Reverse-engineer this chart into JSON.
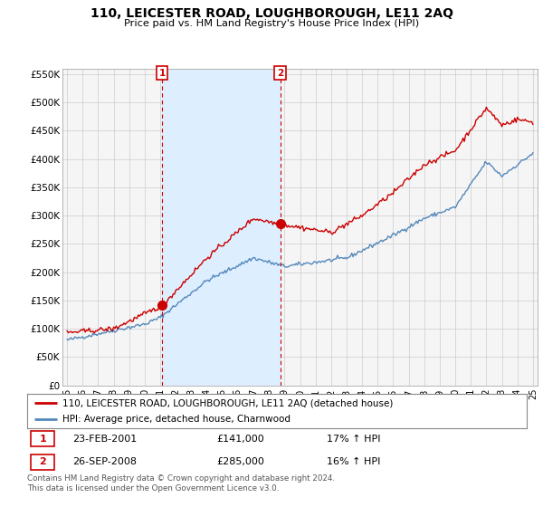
{
  "title": "110, LEICESTER ROAD, LOUGHBOROUGH, LE11 2AQ",
  "subtitle": "Price paid vs. HM Land Registry's House Price Index (HPI)",
  "ytick_vals": [
    0,
    50000,
    100000,
    150000,
    200000,
    250000,
    300000,
    350000,
    400000,
    450000,
    500000,
    550000
  ],
  "ytick_labels": [
    "£0",
    "£50K",
    "£100K",
    "£150K",
    "£200K",
    "£250K",
    "£300K",
    "£350K",
    "£400K",
    "£450K",
    "£500K",
    "£550K"
  ],
  "ylim": [
    0,
    560000
  ],
  "legend_line1": "110, LEICESTER ROAD, LOUGHBOROUGH, LE11 2AQ (detached house)",
  "legend_line2": "HPI: Average price, detached house, Charnwood",
  "annotation1_label": "1",
  "annotation1_date": "23-FEB-2001",
  "annotation1_price": "£141,000",
  "annotation1_hpi": "17% ↑ HPI",
  "annotation2_label": "2",
  "annotation2_date": "26-SEP-2008",
  "annotation2_price": "£285,000",
  "annotation2_hpi": "16% ↑ HPI",
  "footer": "Contains HM Land Registry data © Crown copyright and database right 2024.\nThis data is licensed under the Open Government Licence v3.0.",
  "line_color_red": "#cc0000",
  "line_color_blue": "#5588bb",
  "shade_color": "#ddeeff",
  "background_color": "#ffffff",
  "plot_bg_color": "#f5f5f5",
  "grid_color": "#cccccc",
  "x_start_year": 1995,
  "x_end_year": 2025,
  "sale1_year": 2001.12,
  "sale2_year": 2008.73,
  "sale1_price": 141000,
  "sale2_price": 285000
}
